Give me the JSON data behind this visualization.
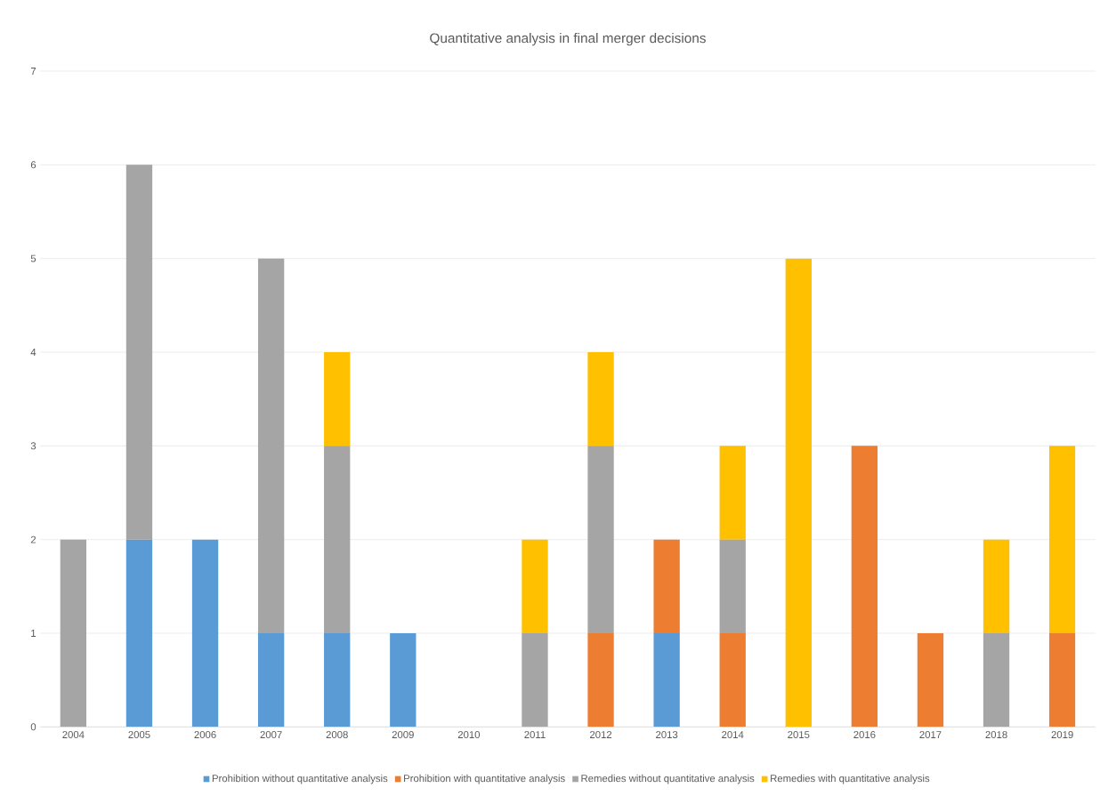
{
  "chart_data": {
    "type": "bar",
    "title": "Quantitative analysis in final merger decisions",
    "stacked": true,
    "categories": [
      "2004",
      "2005",
      "2006",
      "2007",
      "2008",
      "2009",
      "2010",
      "2011",
      "2012",
      "2013",
      "2014",
      "2015",
      "2016",
      "2017",
      "2018",
      "2019"
    ],
    "series": [
      {
        "name": "Prohibition without quantitative analysis",
        "color": "#5b9bd5",
        "values": [
          0,
          2,
          2,
          1,
          1,
          1,
          0,
          0,
          0,
          1,
          0,
          0,
          0,
          0,
          0,
          0
        ]
      },
      {
        "name": "Prohibition with quantitative analysis",
        "color": "#ed7d31",
        "values": [
          0,
          0,
          0,
          0,
          0,
          0,
          0,
          0,
          1,
          1,
          1,
          0,
          3,
          1,
          0,
          1
        ]
      },
      {
        "name": "Remedies without quantitative analysis",
        "color": "#a5a5a5",
        "values": [
          2,
          4,
          0,
          4,
          2,
          0,
          0,
          1,
          2,
          0,
          1,
          0,
          0,
          0,
          1,
          0
        ]
      },
      {
        "name": "Remedies with quantitative analysis",
        "color": "#ffc000",
        "values": [
          0,
          0,
          0,
          0,
          1,
          0,
          0,
          1,
          1,
          0,
          1,
          5,
          0,
          0,
          1,
          2
        ]
      }
    ],
    "ylim": [
      0,
      7
    ],
    "yticks": [
      0,
      1,
      2,
      3,
      4,
      5,
      6,
      7
    ],
    "grid": "y",
    "legend": "bottom"
  }
}
